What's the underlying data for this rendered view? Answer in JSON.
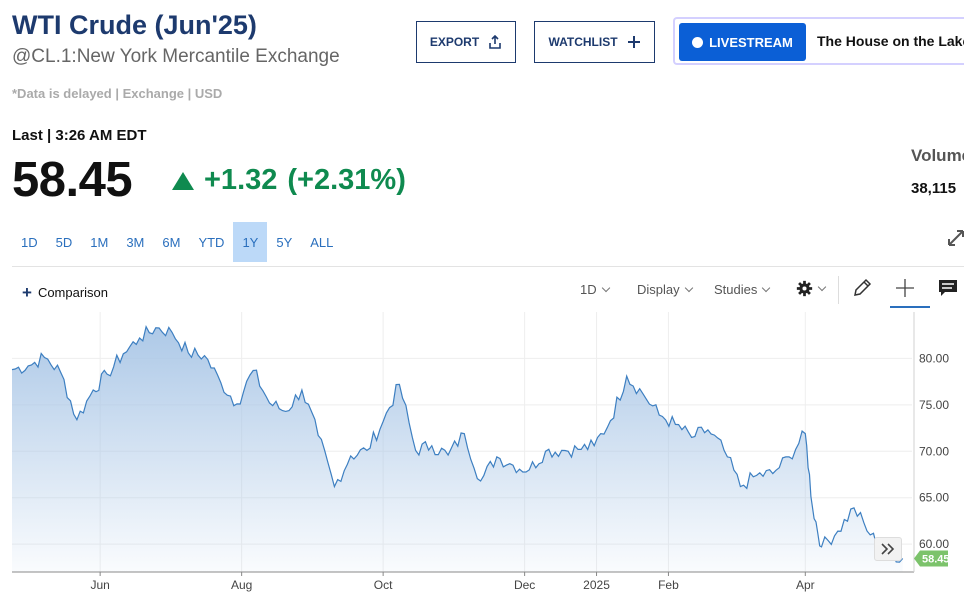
{
  "header": {
    "title": "WTI Crude (Jun'25)",
    "subtitle": "@CL.1:New York Mercantile Exchange",
    "delayed_note": "*Data is delayed | Exchange | USD",
    "export_label": "EXPORT",
    "watchlist_label": "WATCHLIST",
    "livestream_label": "LIVESTREAM",
    "livestream_show": "The House on the Lake"
  },
  "quote": {
    "last_label": "Last | 3:26 AM EDT",
    "price": "58.45",
    "change": "+1.32",
    "change_pct": "(+2.31%)",
    "change_color": "#0f8a4f",
    "volume_label": "Volume",
    "volume_value": "38,115"
  },
  "ranges": [
    "1D",
    "5D",
    "1M",
    "3M",
    "6M",
    "YTD",
    "1Y",
    "5Y",
    "ALL"
  ],
  "active_range": "1Y",
  "toolbar": {
    "comparison_label": "Comparison",
    "interval_label": "1D",
    "display_label": "Display",
    "studies_label": "Studies",
    "icons": [
      "gear-icon",
      "pencil-icon",
      "crosshair-icon",
      "comment-icon",
      "expand-icon",
      "chevrons-right-icon"
    ]
  },
  "chart_data": {
    "type": "area",
    "title": "",
    "xlabel": "",
    "ylabel": "",
    "x_ticks": [
      "Jun",
      "Aug",
      "Oct",
      "Dec",
      "2025",
      "Feb",
      "Apr"
    ],
    "y_ticks": [
      "60.00",
      "65.00",
      "70.00",
      "75.00",
      "80.00"
    ],
    "ylim": [
      57,
      85
    ],
    "grid": true,
    "line_color": "#3d7fc1",
    "fill_color": "#a9c6e6",
    "last_value_label": "58.45",
    "last_value_color": "#7cc36b",
    "series": [
      {
        "x": [
          "2024-04-24",
          "2024-05-01",
          "2024-05-08",
          "2024-05-15",
          "2024-05-22",
          "2024-05-29",
          "2024-06-04",
          "2024-06-11",
          "2024-06-18",
          "2024-06-25",
          "2024-07-02",
          "2024-07-09",
          "2024-07-16",
          "2024-07-23",
          "2024-07-30",
          "2024-08-06",
          "2024-08-13",
          "2024-08-20",
          "2024-08-27",
          "2024-09-03",
          "2024-09-10",
          "2024-09-17",
          "2024-09-24",
          "2024-10-01",
          "2024-10-08",
          "2024-10-15",
          "2024-10-22",
          "2024-10-29",
          "2024-11-05",
          "2024-11-12",
          "2024-11-19",
          "2024-11-26",
          "2024-12-03",
          "2024-12-10",
          "2024-12-17",
          "2024-12-24",
          "2024-12-31",
          "2025-01-07",
          "2025-01-14",
          "2025-01-21",
          "2025-01-28",
          "2025-02-04",
          "2025-02-11",
          "2025-02-18",
          "2025-02-25",
          "2025-03-04",
          "2025-03-11",
          "2025-03-18",
          "2025-03-25",
          "2025-04-01",
          "2025-04-04",
          "2025-04-08",
          "2025-04-15",
          "2025-04-22",
          "2025-04-29",
          "2025-05-06",
          "2025-05-13"
        ],
        "values": [
          78.8,
          79.2,
          80.1,
          78.5,
          73.4,
          76.6,
          78.3,
          80.5,
          82.2,
          83.3,
          82.8,
          80.6,
          80.3,
          77.4,
          75.1,
          78.7,
          75.2,
          74.3,
          76.6,
          71.7,
          66.2,
          69.5,
          70.1,
          73.2,
          77.2,
          70.1,
          70.6,
          69.6,
          71.9,
          66.8,
          69.4,
          68.5,
          68.0,
          70.0,
          70.1,
          70.2,
          70.6,
          73.3,
          78.1,
          76.2,
          73.9,
          72.9,
          71.5,
          72.3,
          70.1,
          66.2,
          67.4,
          67.6,
          69.4,
          71.9,
          64.1,
          59.7,
          61.4,
          63.9,
          61.0,
          59.2,
          58.45
        ]
      }
    ]
  }
}
